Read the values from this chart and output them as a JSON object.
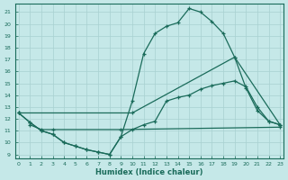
{
  "xlabel": "Humidex (Indice chaleur)",
  "xlim": [
    -0.3,
    23.3
  ],
  "ylim": [
    8.7,
    21.7
  ],
  "yticks": [
    9,
    10,
    11,
    12,
    13,
    14,
    15,
    16,
    17,
    18,
    19,
    20,
    21
  ],
  "xticks": [
    0,
    1,
    2,
    3,
    4,
    5,
    6,
    7,
    8,
    9,
    10,
    11,
    12,
    13,
    14,
    15,
    16,
    17,
    18,
    19,
    20,
    21,
    22,
    23
  ],
  "bg_color": "#c5e8e8",
  "line_color": "#1a6b5a",
  "grid_color": "#a8d0d0",
  "curve1_x": [
    0,
    1,
    2,
    3,
    4,
    5,
    6,
    7,
    8,
    9,
    10,
    11,
    12,
    13,
    14,
    15,
    16,
    17,
    18,
    19,
    20,
    21,
    22,
    23
  ],
  "curve1_y": [
    12.5,
    11.7,
    11.0,
    10.7,
    10.0,
    9.7,
    9.4,
    9.2,
    9.0,
    10.5,
    13.5,
    17.5,
    19.2,
    19.8,
    20.1,
    21.3,
    21.0,
    20.2,
    19.2,
    17.2,
    14.6,
    12.7,
    11.8,
    11.5
  ],
  "curve2_x": [
    0,
    1,
    2,
    3,
    4,
    5,
    6,
    7,
    8,
    9,
    10,
    11,
    12,
    13,
    14,
    15,
    16,
    17,
    18,
    19,
    20,
    21,
    22,
    23
  ],
  "curve2_y": [
    12.5,
    11.7,
    11.0,
    10.7,
    10.0,
    9.7,
    9.4,
    9.2,
    9.0,
    10.5,
    11.1,
    11.5,
    11.8,
    13.5,
    13.8,
    14.0,
    14.5,
    14.8,
    15.0,
    15.2,
    14.7,
    13.0,
    11.8,
    11.5
  ],
  "curve3_x": [
    0,
    10,
    19,
    23
  ],
  "curve3_y": [
    12.5,
    12.5,
    17.2,
    11.5
  ],
  "curve4_x": [
    1,
    2,
    3,
    9,
    23
  ],
  "curve4_y": [
    11.5,
    11.1,
    11.1,
    11.1,
    11.3
  ]
}
